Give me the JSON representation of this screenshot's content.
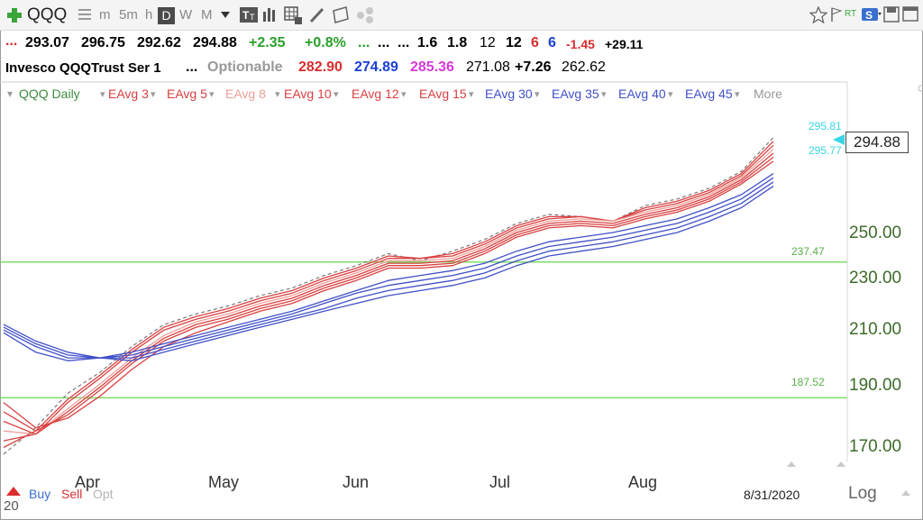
{
  "toolbar": {
    "symbol": "QQQ",
    "intervals": [
      "m",
      "5m",
      "h",
      "D",
      "W",
      "M"
    ],
    "rt_badge": "RT"
  },
  "quote": {
    "prefix": "...",
    "open": "293.07",
    "high": "296.75",
    "low": "292.62",
    "close": "294.88",
    "change": "+2.35",
    "change_pct": "+0.8%",
    "dots1": "...",
    "dots2": "...",
    "dots3": "...",
    "v1": "1.6",
    "v2": "1.8",
    "v3": "12",
    "v4": "12",
    "v5": "6",
    "v6": "6",
    "v7": "-1.45",
    "v8": "+29.11"
  },
  "info": {
    "name": "Invesco QQQTrust Ser 1",
    "dots": "...",
    "optionable": "Optionable",
    "p1": "282.90",
    "p2": "274.89",
    "p3": "285.36",
    "p4": "271.08",
    "p5": "+7.26",
    "p6": "262.62"
  },
  "legend": {
    "symbol_label": "QQQ Daily",
    "more": "More",
    "items": [
      {
        "label": "EAvg 3",
        "color": "#d94040"
      },
      {
        "label": "EAvg 5",
        "color": "#d94040"
      },
      {
        "label": "EAvg 8",
        "color": "#ee9f98"
      },
      {
        "label": "EAvg 10",
        "color": "#d94040"
      },
      {
        "label": "EAvg 12",
        "color": "#d94040"
      },
      {
        "label": "EAvg 15",
        "color": "#d94040"
      },
      {
        "label": "EAvg 30",
        "color": "#4050c8"
      },
      {
        "label": "EAvg 35",
        "color": "#4050c8"
      },
      {
        "label": "EAvg 40",
        "color": "#4050c8"
      },
      {
        "label": "EAvg 45",
        "color": "#4050c8"
      }
    ]
  },
  "chart_data": {
    "type": "line",
    "x_dates": [
      "2020-03-16",
      "2020-03-23",
      "2020-03-30",
      "2020-04-06",
      "2020-04-13",
      "2020-04-20",
      "2020-04-27",
      "2020-05-04",
      "2020-05-11",
      "2020-05-18",
      "2020-05-25",
      "2020-06-01",
      "2020-06-08",
      "2020-06-15",
      "2020-06-22",
      "2020-06-29",
      "2020-07-06",
      "2020-07-13",
      "2020-07-20",
      "2020-07-27",
      "2020-08-03",
      "2020-08-10",
      "2020-08-17",
      "2020-08-24",
      "2020-08-31"
    ],
    "x_ticks": [
      "Apr",
      "May",
      "Jun",
      "Jul",
      "Aug"
    ],
    "y_ticks": [
      "250.00",
      "230.00",
      "210.00",
      "190.00",
      "170.00"
    ],
    "y_scale": "log",
    "ylim": [
      160,
      300
    ],
    "last_price": "294.88",
    "last_price_upper": "295.81",
    "last_price_lower": "295.77",
    "date_label": "8/31/2020",
    "scale_label": "Log",
    "hlines": [
      {
        "value": 237.47,
        "label": "237.47",
        "color": "#7fdc6a"
      },
      {
        "value": 187.52,
        "label": "187.52",
        "color": "#7fdc6a"
      }
    ],
    "series": [
      {
        "name": "QQQ Daily",
        "color": "#7a7a7a",
        "dashed": true,
        "values": [
          170,
          178,
          189,
          196,
          205,
          213,
          217,
          220,
          224,
          227,
          232,
          236,
          241,
          238,
          242,
          247,
          254,
          258,
          257,
          255,
          262,
          265,
          270,
          278,
          295
        ]
      },
      {
        "name": "EAvg 3",
        "color": "#d94040",
        "values": [
          172,
          177,
          187,
          195,
          204,
          212,
          216,
          219,
          223,
          226,
          231,
          235,
          240,
          239,
          241,
          246,
          253,
          257,
          257,
          255,
          261,
          264,
          269,
          277,
          293
        ]
      },
      {
        "name": "EAvg 5",
        "color": "#d94040",
        "values": [
          174,
          176,
          186,
          194,
          203,
          211,
          215,
          218,
          222,
          225,
          230,
          234,
          239,
          239,
          240,
          245,
          252,
          256,
          257,
          255,
          260,
          263,
          268,
          276,
          291
        ]
      },
      {
        "name": "EAvg 8",
        "color": "#ee9f98",
        "values": [
          177,
          176,
          184,
          192,
          201,
          209,
          214,
          217,
          221,
          224,
          229,
          233,
          238,
          238,
          239,
          244,
          251,
          255,
          256,
          255,
          259,
          262,
          267,
          275,
          289
        ]
      },
      {
        "name": "EAvg 10",
        "color": "#d94040",
        "values": [
          180,
          176,
          183,
          191,
          200,
          208,
          213,
          216,
          220,
          223,
          228,
          232,
          237,
          237,
          238,
          243,
          250,
          254,
          255,
          254,
          258,
          261,
          266,
          274,
          287
        ]
      },
      {
        "name": "EAvg 12",
        "color": "#d94040",
        "values": [
          183,
          177,
          182,
          190,
          199,
          207,
          212,
          215,
          219,
          222,
          227,
          231,
          236,
          236,
          237,
          242,
          249,
          253,
          254,
          253,
          257,
          260,
          265,
          273,
          285
        ]
      },
      {
        "name": "EAvg 15",
        "color": "#d94040",
        "values": [
          186,
          178,
          181,
          188,
          197,
          205,
          210,
          214,
          218,
          221,
          226,
          230,
          235,
          235,
          236,
          241,
          248,
          252,
          253,
          252,
          256,
          259,
          264,
          272,
          283
        ]
      },
      {
        "name": "EAvg 30",
        "color": "#4050c8",
        "values": [
          210,
          203,
          200,
          201,
          203,
          206,
          209,
          212,
          215,
          218,
          222,
          226,
          230,
          232,
          234,
          237,
          242,
          246,
          248,
          250,
          253,
          256,
          261,
          267,
          277
        ]
      },
      {
        "name": "EAvg 35",
        "color": "#4050c8",
        "values": [
          211,
          205,
          201,
          201,
          202,
          205,
          208,
          211,
          214,
          217,
          221,
          225,
          228,
          230,
          232,
          235,
          240,
          244,
          246,
          248,
          251,
          254,
          259,
          265,
          275
        ]
      },
      {
        "name": "EAvg 40",
        "color": "#4050c8",
        "values": [
          212,
          206,
          202,
          201,
          201,
          204,
          207,
          210,
          213,
          216,
          219,
          223,
          226,
          228,
          230,
          233,
          238,
          242,
          244,
          246,
          249,
          252,
          257,
          263,
          273
        ]
      },
      {
        "name": "EAvg 45",
        "color": "#4050c8",
        "values": [
          213,
          207,
          203,
          201,
          200,
          203,
          206,
          209,
          212,
          215,
          218,
          221,
          224,
          226,
          228,
          231,
          236,
          240,
          242,
          244,
          247,
          250,
          255,
          261,
          271
        ]
      }
    ]
  },
  "bottom": {
    "buy": "Buy",
    "sell": "Sell",
    "opt": "Opt",
    "corner": "20"
  },
  "colors": {
    "green": "#2aa02a",
    "red": "#d92e2e",
    "blue": "#1a3fd6",
    "magenta": "#d63ad6",
    "axis_green": "#3d6b29"
  }
}
